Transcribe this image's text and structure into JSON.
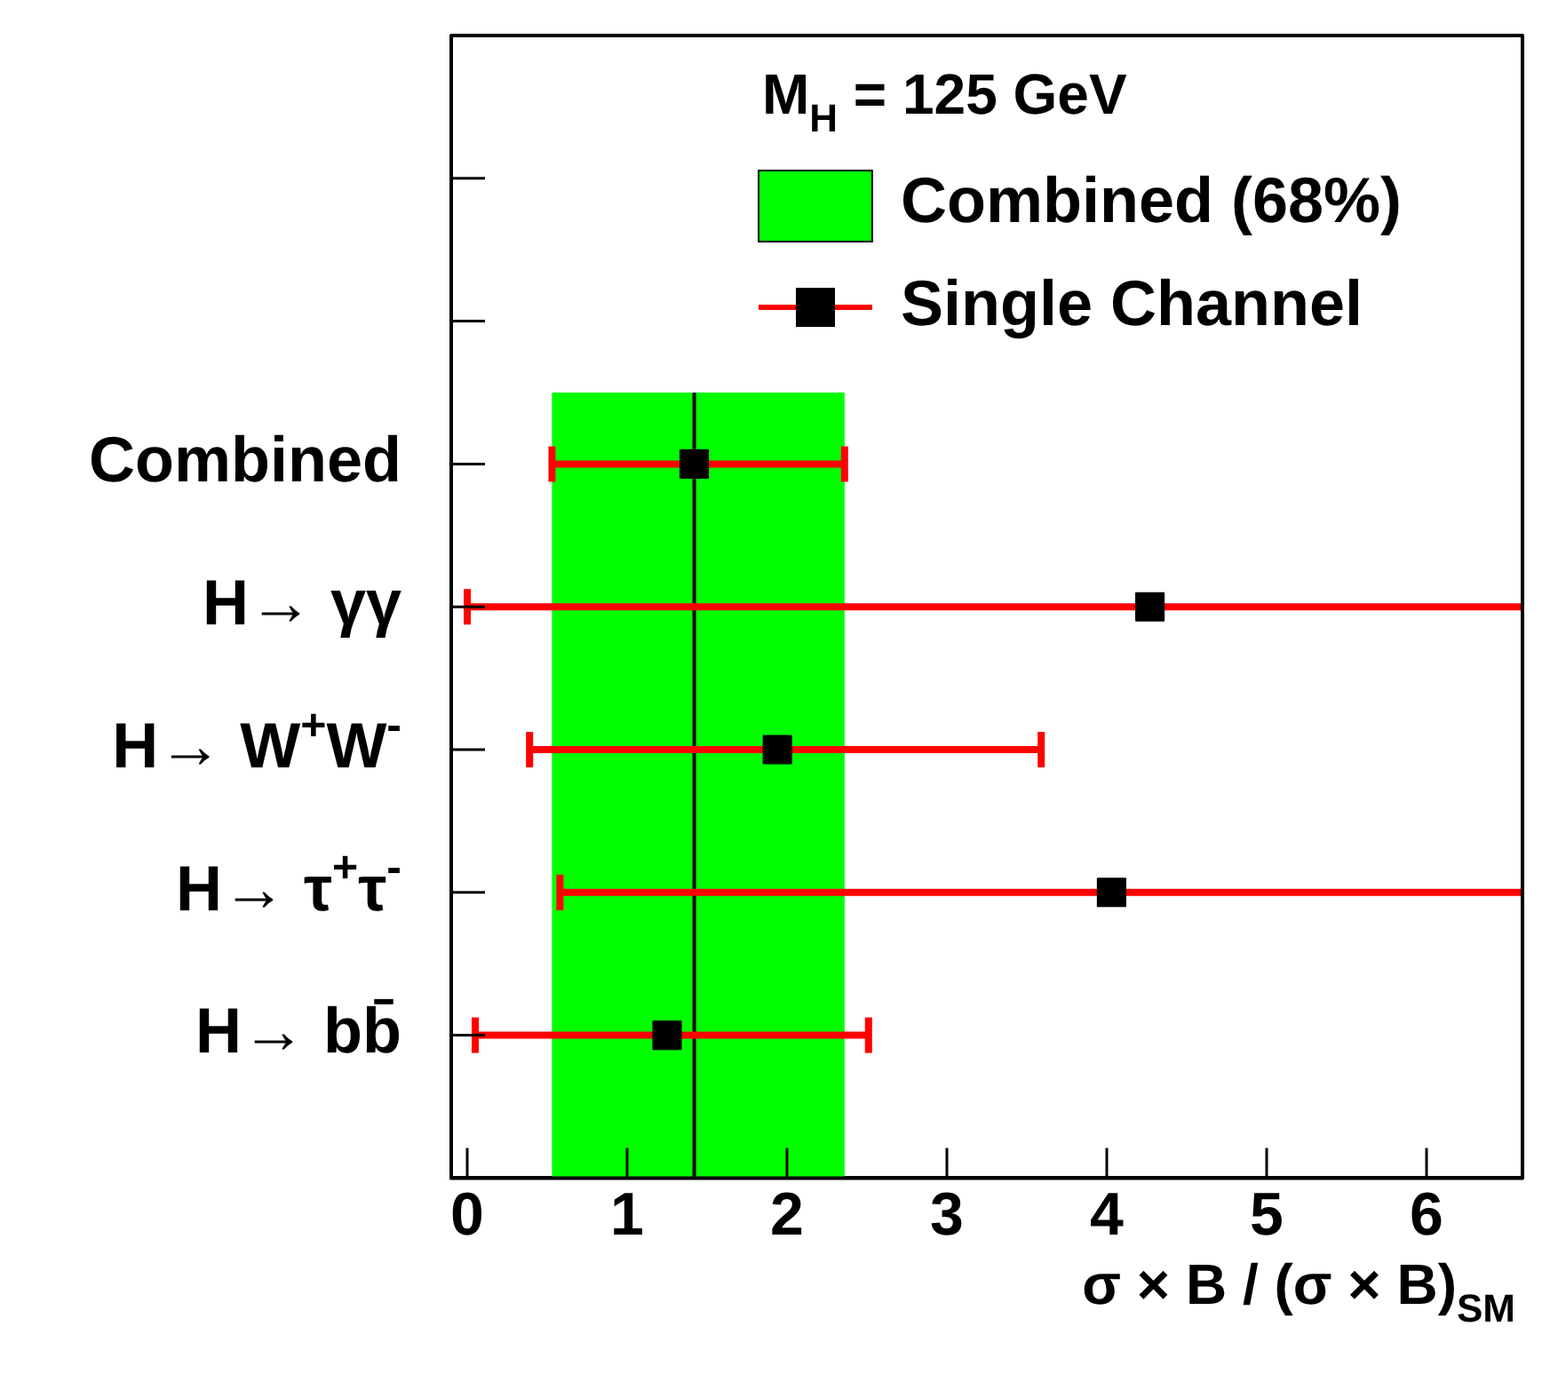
{
  "chart_data": {
    "type": "scatter",
    "orientation": "horizontal",
    "categories": [
      null,
      null,
      "Combined",
      "H→ γγ",
      "H→ W$^{+}$W$^{-}$",
      "H→ τ$^{+}$τ$^{-}$",
      "H→ bb̄"
    ],
    "series": [
      {
        "name": "Single Channel",
        "color": "#000000",
        "values": [
          null,
          null,
          1.42,
          4.27,
          1.94,
          4.03,
          1.25
        ],
        "errors": [
          null,
          null,
          [
            0.53,
            2.36
          ],
          [
            0.0,
            6.6
          ],
          [
            0.39,
            3.59
          ],
          [
            0.58,
            6.6
          ],
          [
            0.05,
            2.51
          ]
        ]
      }
    ],
    "xlim": [
      -0.1,
      6.6
    ],
    "xticks": [
      0,
      1,
      2,
      3,
      4,
      5,
      6
    ],
    "xlabel": "σ × B / (σ × B)$_{SM}$",
    "legend_title": "M$_{H}$ = 125 GeV",
    "bands": [
      {
        "axis": "x",
        "from": 0.53,
        "to": 2.36,
        "label": "Combined (68%)",
        "color": "#00ff00"
      }
    ],
    "ref_lines": [
      {
        "axis": "x",
        "value": 1.42,
        "color": "#000000"
      }
    ],
    "legend": "top right",
    "marker": "square"
  }
}
